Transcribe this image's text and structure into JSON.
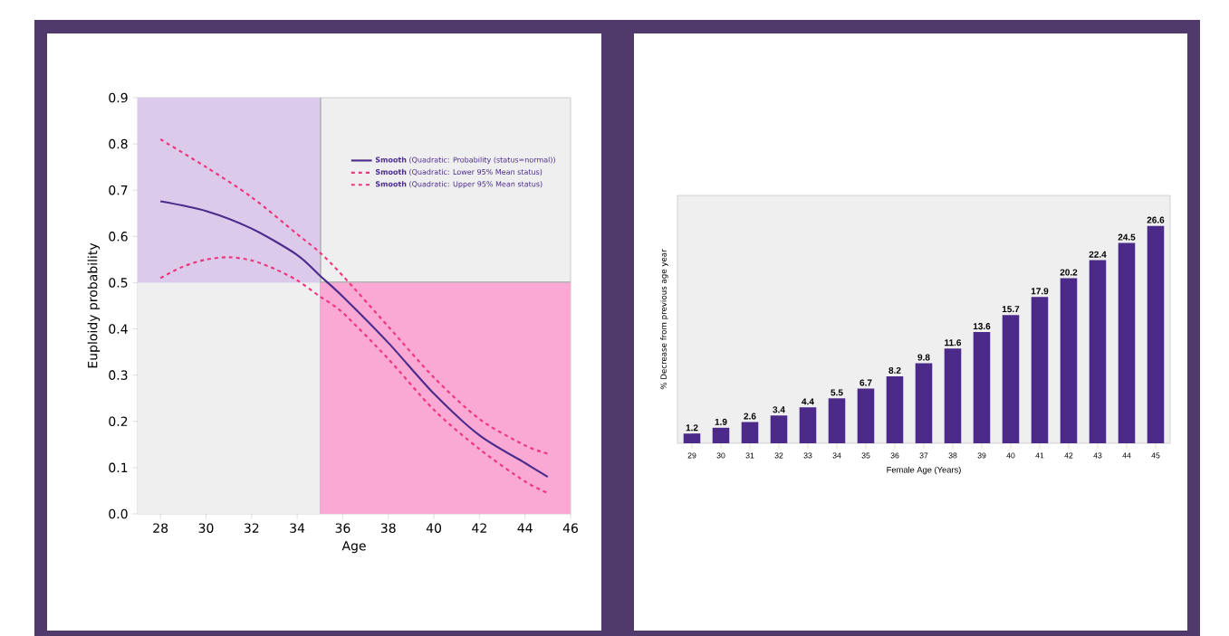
{
  "chart_data": [
    {
      "type": "line",
      "xlabel": "Age",
      "ylabel": "Euploidy probability",
      "xlim": [
        27,
        46
      ],
      "ylim": [
        0,
        0.9
      ],
      "xticks": [
        28,
        30,
        32,
        34,
        36,
        38,
        40,
        42,
        44,
        46
      ],
      "yticks": [
        {
          "value": 0,
          "label": "0.0"
        },
        0.1,
        0.2,
        0.3,
        0.4,
        0.5,
        0.6,
        0.7,
        0.8,
        0.9
      ],
      "legend": "top right",
      "ref_lines": [
        {
          "axis": "x",
          "value": 35,
          "color": "#b3b3b3"
        },
        {
          "axis": "y",
          "value": 0.5,
          "color": "#b3b3b3"
        }
      ],
      "series": [
        {
          "type": "area",
          "color": "#dccaea",
          "x": [
            27,
            35
          ],
          "values": [
            0.9,
            0.9
          ]
        },
        {
          "type": "area",
          "color": "#efefef",
          "x": [
            27,
            35
          ],
          "values": [
            0.5,
            0.5
          ]
        },
        {
          "type": "area",
          "color": "#f9a9d3",
          "x": [
            35,
            46
          ],
          "values": [
            0.5,
            0.5
          ]
        },
        {
          "name": "**Smooth** (Quadratic: Probability (status=normal))",
          "color": "#4b2c8c",
          "line_style": "solid",
          "x": [
            28,
            30,
            32,
            34,
            35,
            36,
            38,
            40,
            42,
            44,
            45
          ],
          "values": [
            0.676,
            0.655,
            0.617,
            0.56,
            0.515,
            0.47,
            0.37,
            0.26,
            0.17,
            0.11,
            0.08
          ]
        },
        {
          "name": "**Smooth** (Quadratic: Lower 95% Mean status)",
          "color": "#f0347e",
          "line_style": "dashed",
          "x": [
            28,
            29,
            30,
            31,
            32,
            33,
            34,
            35,
            36,
            38,
            40,
            42,
            44,
            45
          ],
          "values": [
            0.51,
            0.535,
            0.55,
            0.555,
            0.548,
            0.53,
            0.505,
            0.47,
            0.435,
            0.335,
            0.225,
            0.14,
            0.07,
            0.045
          ]
        },
        {
          "name": "**Smooth** (Quadratic: Upper 95% Mean status)",
          "color": "#f0347e",
          "line_style": "dashed",
          "x": [
            28,
            30,
            32,
            34,
            35,
            36,
            38,
            40,
            42,
            44,
            45
          ],
          "values": [
            0.81,
            0.75,
            0.685,
            0.605,
            0.565,
            0.515,
            0.405,
            0.295,
            0.205,
            0.148,
            0.13
          ]
        }
      ]
    },
    {
      "type": "bar",
      "xlabel": "Female Age (Years)",
      "ylabel": "% Decrease from previous age year",
      "categories": [
        "29",
        "30",
        "31",
        "32",
        "33",
        "34",
        "35",
        "36",
        "37",
        "38",
        "39",
        "40",
        "41",
        "42",
        "43",
        "44",
        "45"
      ],
      "values": [
        1.2,
        1.9,
        2.6,
        3.4,
        4.4,
        5.5,
        6.7,
        8.2,
        9.8,
        11.6,
        13.6,
        15.7,
        17.9,
        20.2,
        22.4,
        24.5,
        26.6
      ],
      "color": "#4b2a8a",
      "data_labels": true
    }
  ]
}
